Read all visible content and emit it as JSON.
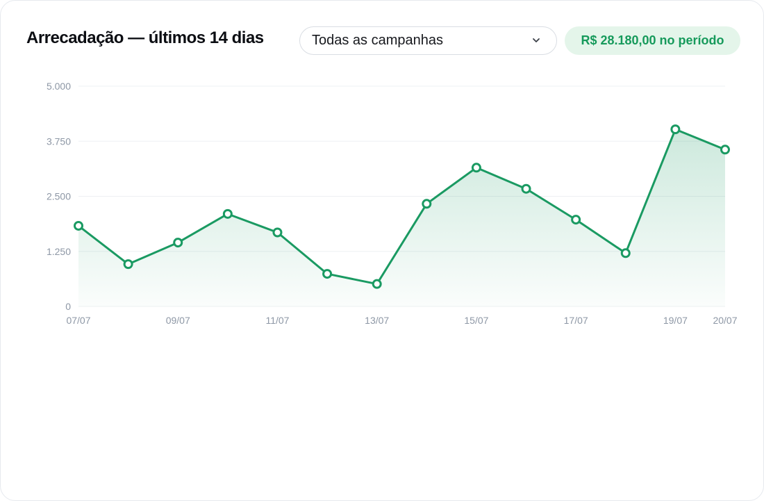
{
  "header": {
    "title": "Arrecadação — últimos 14 dias",
    "campaign_select_value": "Todas as campanhas",
    "total_badge": "R$ 28.180,00 no período"
  },
  "colors": {
    "accent": "#1a9a62",
    "badge_bg": "#e4f5ea",
    "grid": "#eef0f3",
    "tick_text": "#8d97a5"
  },
  "chart_data": {
    "type": "line",
    "title": "",
    "xlabel": "",
    "ylabel": "",
    "x": [
      "07/07",
      "08/07",
      "09/07",
      "10/07",
      "11/07",
      "12/07",
      "13/07",
      "14/07",
      "15/07",
      "16/07",
      "17/07",
      "18/07",
      "19/07",
      "20/07"
    ],
    "x_tick_labels": [
      "07/07",
      "09/07",
      "11/07",
      "13/07",
      "15/07",
      "17/07",
      "19/07",
      "20/07"
    ],
    "series": [
      {
        "values": [
          1830,
          960,
          1450,
          2100,
          1680,
          740,
          510,
          2330,
          3150,
          2670,
          1970,
          1210,
          4020,
          3560
        ]
      }
    ],
    "ylim": [
      0,
      5000
    ],
    "y_ticks": [
      0,
      1250,
      2500,
      3750,
      5000
    ],
    "y_tick_labels": [
      "0",
      "1.250",
      "2.500",
      "3.750",
      "5.000"
    ],
    "grid": true,
    "area_fill": true,
    "legend": "none"
  }
}
